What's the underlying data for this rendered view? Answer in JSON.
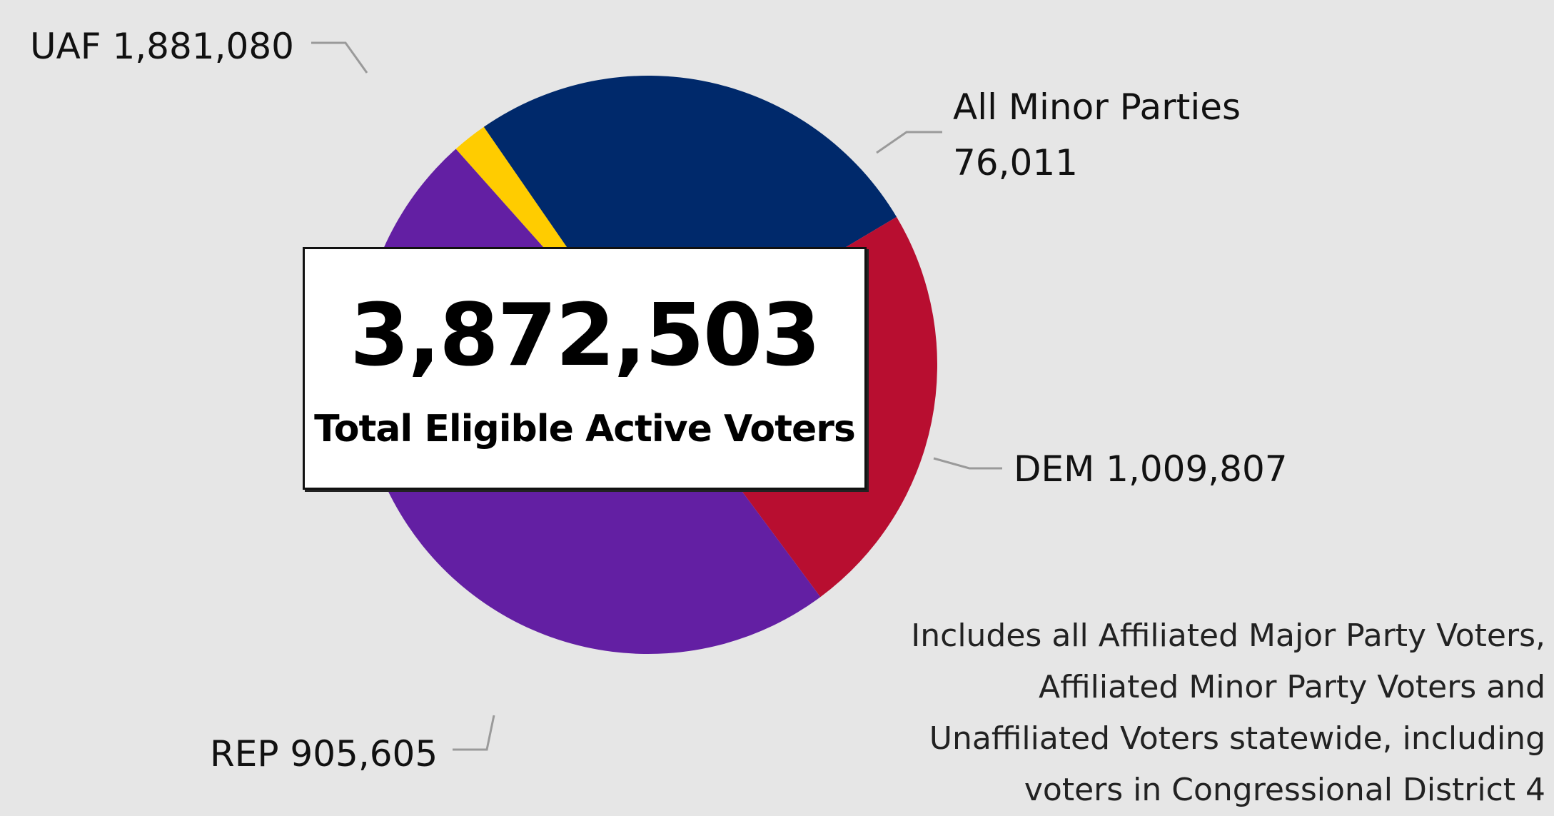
{
  "chart_data": {
    "type": "pie",
    "slices": [
      {
        "label": "All Minor Parties",
        "value": 76011,
        "value_text": "76,011",
        "color": "#ffcc00"
      },
      {
        "label": "DEM",
        "value": 1009807,
        "value_text": "1,009,807",
        "color": "#00296b"
      },
      {
        "label": "REP",
        "value": 905605,
        "value_text": "905,605",
        "color": "#b80e30"
      },
      {
        "label": "UAF",
        "value": 1881080,
        "value_text": "1,881,080",
        "color": "#631fa3"
      }
    ],
    "center": {
      "total": "3,872,503",
      "caption": "Total Eligible Active Voters"
    },
    "note_lines": [
      "Includes all Affiliated Major Party Voters,",
      "Affiliated Minor Party Voters and",
      "Unaffiliated Voters statewide, including",
      "voters in Congressional District 4"
    ]
  }
}
